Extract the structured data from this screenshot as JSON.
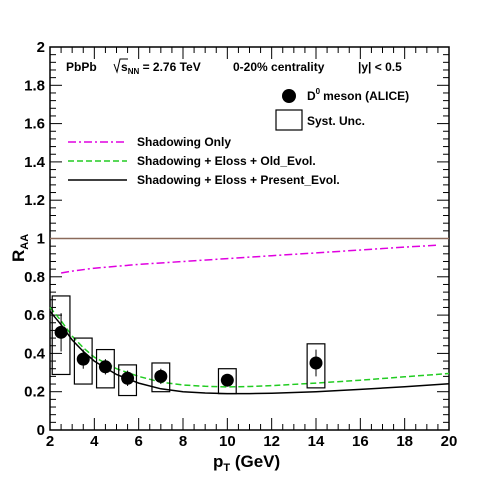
{
  "chart_data": {
    "type": "scatter",
    "header": {
      "system": "PbPb",
      "energy": "s",
      "energy_sub": "NN",
      "energy_value": " = 2.76 TeV",
      "centrality": "0-20% centrality",
      "rapidity": "|y| < 0.5"
    },
    "xlabel": "p",
    "xlabel_sub": "T",
    "xlabel_unit": " (GeV)",
    "ylabel": "R",
    "ylabel_sub": "AA",
    "xlim": [
      2,
      20
    ],
    "ylim": [
      0,
      2
    ],
    "x_ticks": [
      "2",
      "4",
      "6",
      "8",
      "10",
      "12",
      "14",
      "16",
      "18",
      "20"
    ],
    "y_ticks": [
      "0",
      "0.2",
      "0.4",
      "0.6",
      "0.8",
      "1",
      "1.2",
      "1.4",
      "1.6",
      "1.8",
      "2"
    ],
    "reference_line": {
      "y": 1,
      "color": "#8b6a5a"
    },
    "data_series": {
      "label": "meson  (ALICE)",
      "label_prefix": "D",
      "label_sup": "0",
      "color": "#000000",
      "points": [
        {
          "x": 2.5,
          "y": 0.51,
          "stat_err": 0.1,
          "syst_low": 0.29,
          "syst_high": 0.7,
          "syst_half_width": 0.4
        },
        {
          "x": 3.5,
          "y": 0.37,
          "stat_err": 0.05,
          "syst_low": 0.24,
          "syst_high": 0.48,
          "syst_half_width": 0.4
        },
        {
          "x": 4.5,
          "y": 0.33,
          "stat_err": 0.04,
          "syst_low": 0.22,
          "syst_high": 0.42,
          "syst_half_width": 0.4
        },
        {
          "x": 5.5,
          "y": 0.27,
          "stat_err": 0.04,
          "syst_low": 0.18,
          "syst_high": 0.34,
          "syst_half_width": 0.4
        },
        {
          "x": 7.0,
          "y": 0.28,
          "stat_err": 0.04,
          "syst_low": 0.2,
          "syst_high": 0.35,
          "syst_half_width": 0.4
        },
        {
          "x": 10.0,
          "y": 0.26,
          "stat_err": 0.03,
          "syst_low": 0.19,
          "syst_high": 0.32,
          "syst_half_width": 0.4
        },
        {
          "x": 14.0,
          "y": 0.35,
          "stat_err": 0.07,
          "syst_low": 0.22,
          "syst_high": 0.45,
          "syst_half_width": 0.4
        }
      ]
    },
    "syst_legend_label": "Syst. Unc.",
    "curves": [
      {
        "name": "Shadowing Only",
        "color": "#e000e0",
        "dash": "dashdot",
        "points": [
          [
            2.5,
            0.82
          ],
          [
            3,
            0.83
          ],
          [
            4,
            0.845
          ],
          [
            5,
            0.855
          ],
          [
            6,
            0.865
          ],
          [
            8,
            0.88
          ],
          [
            10,
            0.895
          ],
          [
            12,
            0.91
          ],
          [
            14,
            0.925
          ],
          [
            16,
            0.94
          ],
          [
            18,
            0.955
          ],
          [
            19.5,
            0.965
          ]
        ]
      },
      {
        "name": "Shadowing + Eloss + Old_Evol.",
        "color": "#22cc22",
        "dash": "dashed",
        "points": [
          [
            2,
            0.64
          ],
          [
            2.5,
            0.57
          ],
          [
            3,
            0.49
          ],
          [
            3.5,
            0.43
          ],
          [
            4,
            0.38
          ],
          [
            5,
            0.32
          ],
          [
            6,
            0.28
          ],
          [
            7,
            0.25
          ],
          [
            8,
            0.235
          ],
          [
            9,
            0.228
          ],
          [
            10,
            0.225
          ],
          [
            11,
            0.227
          ],
          [
            12,
            0.232
          ],
          [
            14,
            0.245
          ],
          [
            16,
            0.26
          ],
          [
            18,
            0.278
          ],
          [
            20,
            0.295
          ]
        ]
      },
      {
        "name": "Shadowing + Eloss + Present_Evol.",
        "color": "#000000",
        "dash": "solid",
        "points": [
          [
            2,
            0.62
          ],
          [
            2.5,
            0.55
          ],
          [
            3,
            0.47
          ],
          [
            3.5,
            0.41
          ],
          [
            4,
            0.36
          ],
          [
            5,
            0.29
          ],
          [
            6,
            0.245
          ],
          [
            7,
            0.215
          ],
          [
            8,
            0.2
          ],
          [
            9,
            0.193
          ],
          [
            10,
            0.19
          ],
          [
            11,
            0.19
          ],
          [
            12,
            0.192
          ],
          [
            14,
            0.2
          ],
          [
            16,
            0.212
          ],
          [
            18,
            0.226
          ],
          [
            20,
            0.242
          ]
        ]
      }
    ]
  }
}
